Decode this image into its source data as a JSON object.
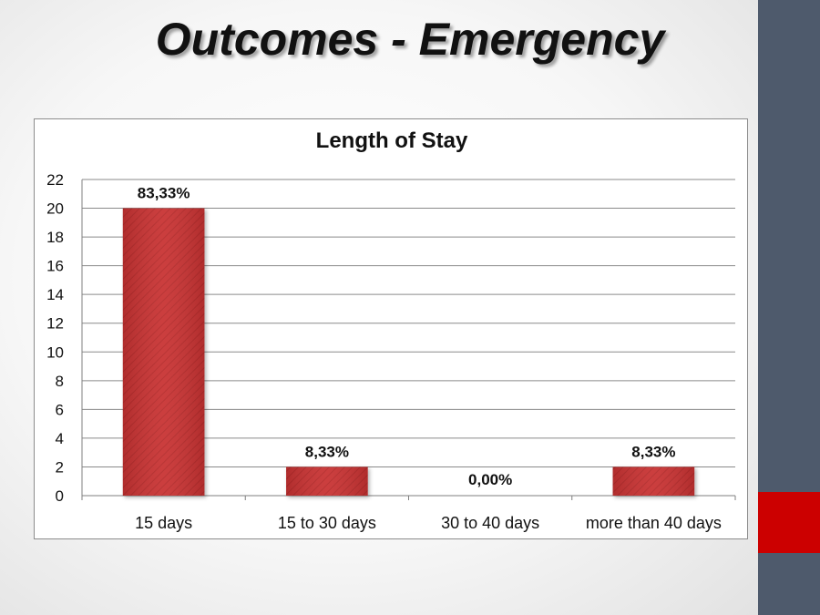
{
  "slide": {
    "title": "Outcomes - Emergency",
    "colors": {
      "sidebar": "#4e5a6c",
      "accent": "#cc0000"
    }
  },
  "chart_data": {
    "type": "bar",
    "title": "Length of Stay",
    "categories": [
      "15 days",
      "15 to 30 days",
      "30 to 40 days",
      "more than 40 days"
    ],
    "values": [
      20,
      2,
      0,
      2
    ],
    "data_labels": [
      "83,33%",
      "8,33%",
      "0,00%",
      "8,33%"
    ],
    "ylim": [
      0,
      22
    ],
    "yticks": [
      0,
      2,
      4,
      6,
      8,
      10,
      12,
      14,
      16,
      18,
      20,
      22
    ],
    "xlabel": "",
    "ylabel": "",
    "grid": true,
    "legend": "none",
    "bar_color": "#c83232"
  }
}
